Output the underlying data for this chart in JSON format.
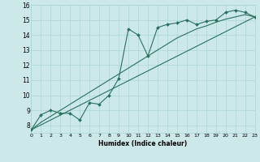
{
  "xlabel": "Humidex (Indice chaleur)",
  "bg_color": "#cce8e8",
  "grid_color_major": "#aad4d4",
  "grid_color_minor": "#bbdfdf",
  "line_color": "#2a7060",
  "x_min": 0,
  "x_max": 23,
  "y_min": 7.5,
  "y_max": 16,
  "yticks": [
    8,
    9,
    10,
    11,
    12,
    13,
    14,
    15,
    16
  ],
  "xticks": [
    0,
    1,
    2,
    3,
    4,
    5,
    6,
    7,
    8,
    9,
    10,
    11,
    12,
    13,
    14,
    15,
    16,
    17,
    18,
    19,
    20,
    21,
    22,
    23
  ],
  "line1_x": [
    0,
    1,
    2,
    3,
    4,
    5,
    6,
    7,
    8,
    9,
    10,
    11,
    12,
    13,
    14,
    15,
    16,
    17,
    18,
    19,
    20,
    21,
    22,
    23
  ],
  "line1_y": [
    7.7,
    8.7,
    9.0,
    8.8,
    8.8,
    8.35,
    9.5,
    9.4,
    10.0,
    11.1,
    14.4,
    14.0,
    12.6,
    14.5,
    14.7,
    14.8,
    15.0,
    14.7,
    14.9,
    15.0,
    15.5,
    15.65,
    15.5,
    15.2
  ],
  "line2_x": [
    0,
    23
  ],
  "line2_y": [
    7.7,
    15.2
  ],
  "line3_x": [
    0,
    1,
    2,
    3,
    4,
    5,
    6,
    7,
    8,
    9,
    10,
    11,
    12,
    13,
    14,
    15,
    16,
    17,
    18,
    19,
    20,
    21,
    22,
    23
  ],
  "line3_y": [
    7.7,
    8.2,
    8.6,
    9.0,
    9.4,
    9.8,
    10.2,
    10.6,
    11.0,
    11.4,
    11.8,
    12.2,
    12.6,
    13.0,
    13.4,
    13.8,
    14.1,
    14.4,
    14.6,
    14.85,
    15.05,
    15.2,
    15.35,
    15.2
  ]
}
